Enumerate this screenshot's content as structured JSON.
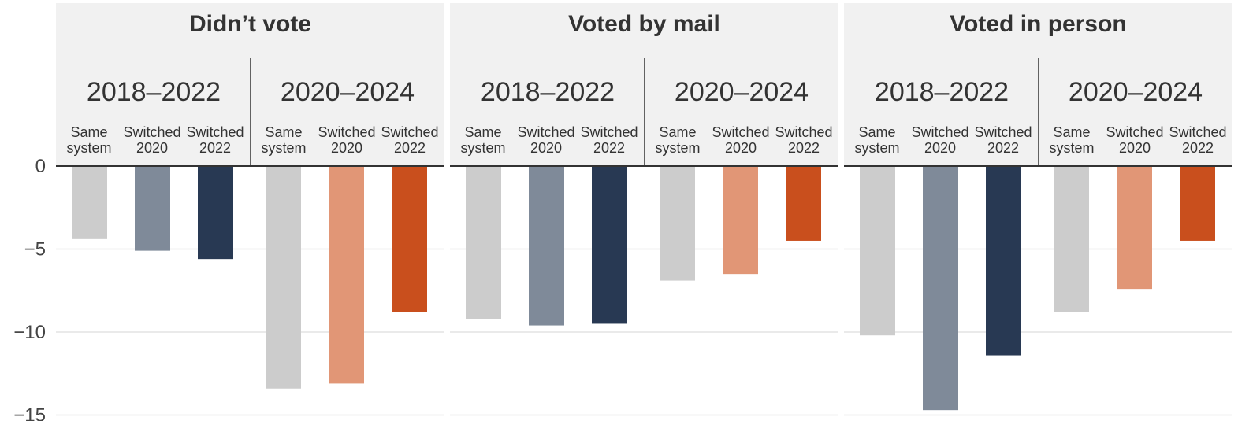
{
  "chart_data": {
    "type": "bar",
    "ylim": [
      -15,
      0
    ],
    "yticks": [
      0,
      -5,
      -10,
      -15
    ],
    "ytick_labels": [
      "0",
      "−5",
      "−10",
      "−15"
    ],
    "grid": true,
    "category_labels": [
      "Same system",
      "Switched 2020",
      "Switched 2022"
    ],
    "category_lines": [
      [
        "Same",
        "system"
      ],
      [
        "Switched",
        "2020"
      ],
      [
        "Switched",
        "2022"
      ]
    ],
    "periods": [
      "2018–2022",
      "2020–2024"
    ],
    "colors": {
      "2018–2022": [
        "#cccccc",
        "#7f8a99",
        "#283953"
      ],
      "2020–2024": [
        "#cccccc",
        "#e19676",
        "#c94f1d"
      ]
    },
    "panels": [
      {
        "title": "Didn’t vote",
        "groups": [
          {
            "period": "2018–2022",
            "values": [
              -4.4,
              -5.1,
              -5.6
            ]
          },
          {
            "period": "2020–2024",
            "values": [
              -13.4,
              -13.1,
              -8.8
            ]
          }
        ]
      },
      {
        "title": "Voted by mail",
        "groups": [
          {
            "period": "2018–2022",
            "values": [
              -9.2,
              -9.6,
              -9.5
            ]
          },
          {
            "period": "2020–2024",
            "values": [
              -6.9,
              -6.5,
              -4.5
            ]
          }
        ]
      },
      {
        "title": "Voted in person",
        "groups": [
          {
            "period": "2018–2022",
            "values": [
              -10.2,
              -14.7,
              -11.4
            ]
          },
          {
            "period": "2020–2024",
            "values": [
              -8.8,
              -7.4,
              -4.5
            ]
          }
        ]
      }
    ]
  }
}
